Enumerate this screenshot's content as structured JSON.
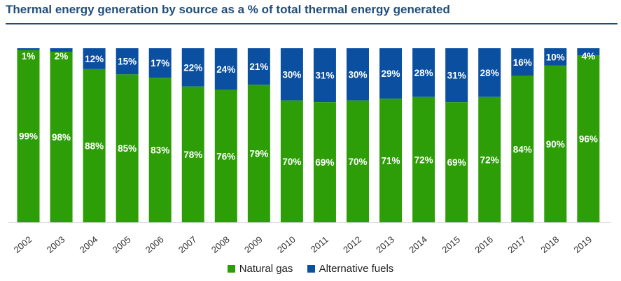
{
  "chart_data": {
    "type": "bar",
    "stacked": true,
    "percent_stacked": true,
    "title": "Thermal energy generation by source as a % of total thermal energy generated",
    "xlabel": "",
    "ylabel": "",
    "ylim": [
      0,
      100
    ],
    "grid": false,
    "legend_position": "bottom",
    "categories": [
      "2002",
      "2003",
      "2004",
      "2005",
      "2006",
      "2007",
      "2008",
      "2009",
      "2010",
      "2011",
      "2012",
      "2013",
      "2014",
      "2015",
      "2016",
      "2017",
      "2018",
      "2019"
    ],
    "series": [
      {
        "name": "Natural gas",
        "color": "#2e9e08",
        "values": [
          99,
          98,
          88,
          85,
          83,
          78,
          76,
          79,
          70,
          69,
          70,
          71,
          72,
          69,
          72,
          84,
          90,
          96
        ],
        "labels": [
          "99%",
          "98%",
          "88%",
          "85%",
          "83%",
          "78%",
          "76%",
          "79%",
          "70%",
          "69%",
          "70%",
          "71%",
          "72%",
          "69%",
          "72%",
          "84%",
          "90%",
          "96%"
        ]
      },
      {
        "name": "Alternative fuels",
        "color": "#0b50a0",
        "values": [
          1,
          2,
          12,
          15,
          17,
          22,
          24,
          21,
          30,
          31,
          30,
          29,
          28,
          31,
          28,
          16,
          10,
          4
        ],
        "labels": [
          "1%",
          "2%",
          "12%",
          "15%",
          "17%",
          "22%",
          "24%",
          "21%",
          "30%",
          "31%",
          "30%",
          "29%",
          "28%",
          "31%",
          "28%",
          "16%",
          "10%",
          "4%"
        ]
      }
    ]
  }
}
